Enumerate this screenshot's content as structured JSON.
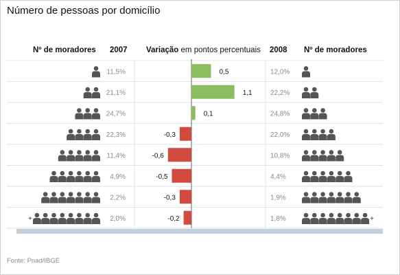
{
  "title": "Número de pessoas por domicílio",
  "headers": {
    "moradores_left": "Nº de moradores",
    "year_left": "2007",
    "variacao_bold": "Variação",
    "variacao_rest": " em pontos percentuais",
    "year_right": "2008",
    "moradores_right": "Nº de moradores"
  },
  "plus_sign": "+",
  "source": "Fonte: Pnad/IBGE",
  "colors": {
    "positive": "#8bbd5f",
    "negative": "#d04a3f",
    "person": "#555555",
    "footer_bar": "#c4d1dc"
  },
  "icons": {
    "person": "person-icon"
  },
  "chart_data": {
    "type": "bar",
    "title": "Número de pessoas por domicílio",
    "categories": [
      "1",
      "2",
      "3",
      "4",
      "5",
      "6",
      "7",
      "8+"
    ],
    "people": [
      1,
      2,
      3,
      4,
      5,
      6,
      7,
      8
    ],
    "plus_on_last": true,
    "pct_2007": [
      "11,5%",
      "21,1%",
      "24,7%",
      "22,3%",
      "11,4%",
      "4,9%",
      "2,2%",
      "2,0%"
    ],
    "pct_2008": [
      "12,0%",
      "22,2%",
      "24,8%",
      "22,0%",
      "10,8%",
      "4,4%",
      "1,9%",
      "1,8%"
    ],
    "variation": [
      0.5,
      1.1,
      0.1,
      -0.3,
      -0.6,
      -0.5,
      -0.3,
      -0.2
    ],
    "variation_labels": [
      "0,5",
      "1,1",
      "0,1",
      "-0,3",
      "-0,6",
      "-0,5",
      "-0,3",
      "-0,2"
    ],
    "xlim": [
      -1.1,
      1.1
    ]
  }
}
